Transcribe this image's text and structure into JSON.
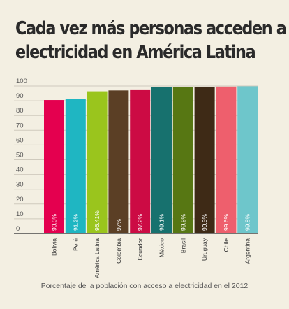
{
  "title_lines": [
    "Cada vez más personas acceden a",
    "electricidad en América Latina"
  ],
  "caption": "Porcentaje de la población con acceso a electricidad en el 2012",
  "chart_data": {
    "type": "bar",
    "categories": [
      "Bolivia",
      "Perú",
      "América Latina",
      "Colombia",
      "Ecuador",
      "México",
      "Brasil",
      "Uruguay",
      "Chile",
      "Argentina"
    ],
    "values": [
      90.5,
      91.2,
      96.41,
      97,
      97.2,
      99.1,
      99.5,
      99.5,
      99.6,
      99.8
    ],
    "value_labels": [
      "90.5%",
      "91.2%",
      "96.41%",
      "97%",
      "97.2%",
      "99.1%",
      "99.5%",
      "99.5%",
      "99.6%",
      "99.8%"
    ],
    "colors": [
      "#e4004f",
      "#1fb6c2",
      "#9ac51d",
      "#5b3f25",
      "#cc0b44",
      "#17716e",
      "#577713",
      "#3e2a16",
      "#ee5f6d",
      "#6ec6cb"
    ],
    "ylim": [
      0,
      100
    ],
    "yticks": [
      "0",
      "10",
      "20",
      "30",
      "40",
      "50",
      "60",
      "70",
      "80",
      "90",
      "100"
    ],
    "grid": true,
    "legend": "none"
  }
}
